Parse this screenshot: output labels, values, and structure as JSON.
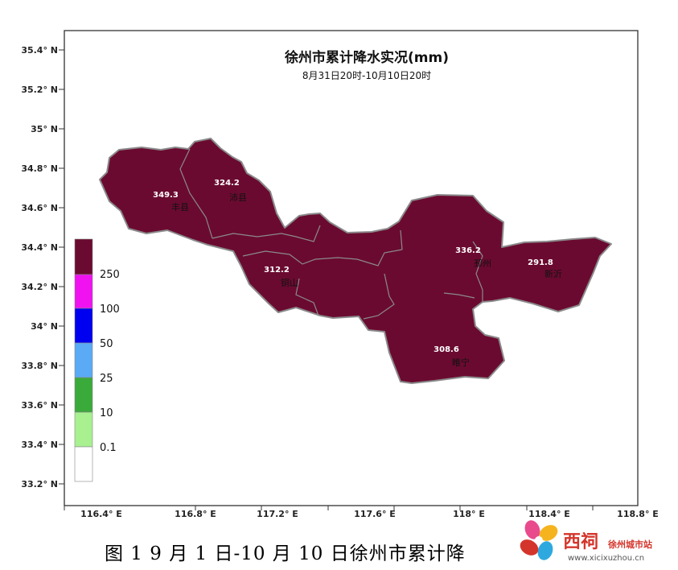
{
  "map": {
    "title": "徐州市累计降水实况(mm)",
    "subtitle": "8月31日20时-10月10日20时",
    "x_ticks": [
      "116.4° E",
      "116.8° E",
      "117.2° E",
      "117.6° E",
      "118° E",
      "118.4° E",
      "118.8° E"
    ],
    "y_ticks": [
      "35.4° N",
      "35.2° N",
      "35° N",
      "34.8° N",
      "34.6° N",
      "34.4° N",
      "34.2° N",
      "34° N",
      "33.8° N",
      "33.6° N",
      "33.4° N",
      "33.2° N"
    ],
    "fill_color": "#6b0a30",
    "stations": [
      {
        "name": "丰县",
        "value": "349.3"
      },
      {
        "name": "沛县",
        "value": "324.2"
      },
      {
        "name": "铜山",
        "value": "312.2"
      },
      {
        "name": "邳州",
        "value": "336.2"
      },
      {
        "name": "新沂",
        "value": "291.8"
      },
      {
        "name": "睢宁",
        "value": "308.6"
      }
    ]
  },
  "legend": {
    "labels": [
      "250",
      "100",
      "50",
      "25",
      "10",
      "0.1"
    ],
    "colors": [
      "#6b0a30",
      "#f012f0",
      "#0000f0",
      "#5aaaf5",
      "#3aaa3a",
      "#a8f090",
      "#ffffff"
    ]
  },
  "caption": "图 1  9 月 1 日-10 月 10 日徐州市累计降",
  "logo": {
    "main": "西祠",
    "sub": "徐州城市站",
    "url": "www.xicixuzhou.cn"
  }
}
